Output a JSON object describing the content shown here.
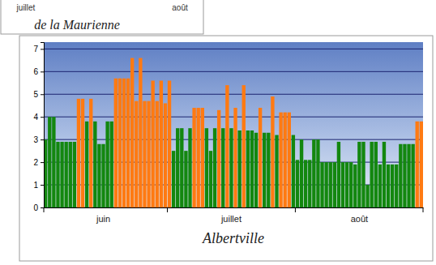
{
  "chart_data": [
    {
      "type": "bar",
      "title": "Albertville",
      "categories": [
        null,
        null,
        null,
        null,
        null,
        null,
        null,
        null,
        null,
        null,
        null,
        null,
        null,
        null,
        "juin",
        null,
        null,
        null,
        null,
        null,
        null,
        null,
        null,
        null,
        null,
        null,
        null,
        null,
        null,
        null,
        null,
        null,
        null,
        null,
        null,
        null,
        null,
        null,
        null,
        null,
        null,
        null,
        null,
        null,
        null,
        "juillet",
        null,
        null,
        null,
        null,
        null,
        null,
        null,
        null,
        null,
        null,
        null,
        null,
        null,
        null,
        null,
        null,
        null,
        null,
        null,
        null,
        null,
        null,
        null,
        null,
        null,
        null,
        null,
        null,
        null,
        null,
        "août",
        null,
        null,
        null,
        null,
        null,
        null,
        null,
        null,
        null,
        null,
        null,
        null,
        null,
        null,
        null
      ],
      "values": [
        3.0,
        4.0,
        4.0,
        2.9,
        2.9,
        2.9,
        2.9,
        2.9,
        4.8,
        4.8,
        3.8,
        4.8,
        3.8,
        2.8,
        2.8,
        3.8,
        3.8,
        5.7,
        5.7,
        5.7,
        5.7,
        6.6,
        4.7,
        6.6,
        4.7,
        4.7,
        5.6,
        4.7,
        5.6,
        4.6,
        5.6,
        2.5,
        3.5,
        3.5,
        2.5,
        3.5,
        4.4,
        4.4,
        4.4,
        3.5,
        2.5,
        3.5,
        4.3,
        3.5,
        5.4,
        3.5,
        4.4,
        3.4,
        5.4,
        3.4,
        3.4,
        3.3,
        4.4,
        3.3,
        3.3,
        4.9,
        3.2,
        4.2,
        4.2,
        4.2,
        3.2,
        2.1,
        3.0,
        2.1,
        2.1,
        3.0,
        3.0,
        2.0,
        2.0,
        2.0,
        2.0,
        2.9,
        2.0,
        2.0,
        2.0,
        1.9,
        2.9,
        2.9,
        1.0,
        2.9,
        2.9,
        1.9,
        2.9,
        1.9,
        1.9,
        1.9,
        2.8,
        2.8,
        2.8,
        2.8,
        3.8,
        3.8
      ],
      "colors": [
        "#13870f",
        "#13870f",
        "#13870f",
        "#13870f",
        "#13870f",
        "#13870f",
        "#13870f",
        "#13870f",
        "#ff7a12",
        "#ff7a12",
        "#13870f",
        "#ff7a12",
        "#13870f",
        "#13870f",
        "#13870f",
        "#13870f",
        "#13870f",
        "#ff7a12",
        "#ff7a12",
        "#ff7a12",
        "#ff7a12",
        "#ff7a12",
        "#ff7a12",
        "#ff7a12",
        "#ff7a12",
        "#ff7a12",
        "#ff7a12",
        "#ff7a12",
        "#ff7a12",
        "#ff7a12",
        "#ff7a12",
        "#13870f",
        "#13870f",
        "#13870f",
        "#13870f",
        "#13870f",
        "#ff7a12",
        "#ff7a12",
        "#ff7a12",
        "#13870f",
        "#13870f",
        "#13870f",
        "#ff7a12",
        "#13870f",
        "#ff7a12",
        "#13870f",
        "#ff7a12",
        "#13870f",
        "#ff7a12",
        "#13870f",
        "#13870f",
        "#13870f",
        "#ff7a12",
        "#13870f",
        "#13870f",
        "#ff7a12",
        "#13870f",
        "#ff7a12",
        "#ff7a12",
        "#ff7a12",
        "#13870f",
        "#13870f",
        "#13870f",
        "#13870f",
        "#13870f",
        "#13870f",
        "#13870f",
        "#13870f",
        "#13870f",
        "#13870f",
        "#13870f",
        "#13870f",
        "#13870f",
        "#13870f",
        "#13870f",
        "#13870f",
        "#13870f",
        "#13870f",
        "#13870f",
        "#13870f",
        "#13870f",
        "#13870f",
        "#13870f",
        "#13870f",
        "#13870f",
        "#13870f",
        "#13870f",
        "#13870f",
        "#13870f",
        "#13870f",
        "#ff7a12",
        "#ff7a12"
      ],
      "ylim": [
        0,
        7.3
      ],
      "yticks": [
        0,
        1,
        2,
        3,
        4,
        5,
        6,
        7
      ],
      "grid": true
    },
    {
      "type": "bar",
      "title": "de la Maurienne",
      "categories": [
        "juillet",
        "août"
      ],
      "tick_labels": "x"
    }
  ]
}
